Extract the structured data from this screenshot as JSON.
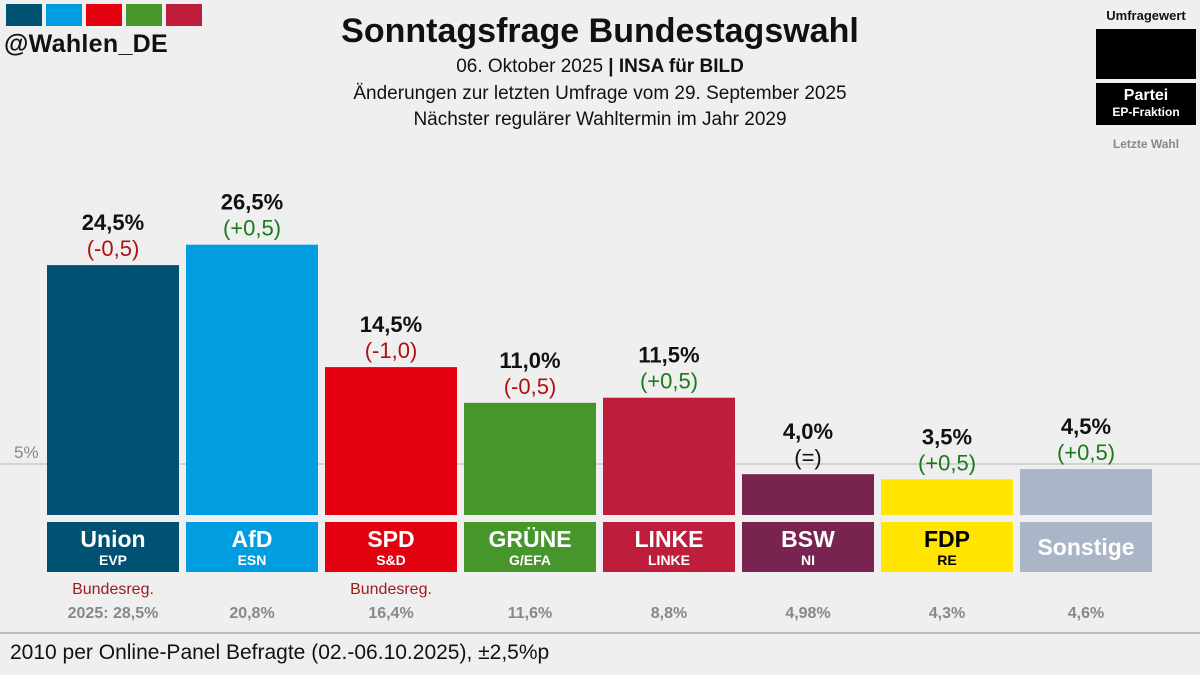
{
  "logo": {
    "handle": "@Wahlen_DE",
    "colors": [
      "#005172",
      "#009ee0",
      "#e3000f",
      "#46962b",
      "#be1e3c"
    ]
  },
  "header": {
    "title": "Sonntagsfrage Bundestagswahl",
    "date": "06. Oktober 2025",
    "separator": "|",
    "institute": "INSA für BILD",
    "line2": "Änderungen zur letzten Umfrage vom 29. September 2025",
    "line3": "Nächster regulärer Wahltermin im Jahr 2029"
  },
  "legend": {
    "value": "Umfragewert",
    "party": "Partei",
    "group": "EP-Fraktion",
    "last": "Letzte Wahl"
  },
  "chart_data": {
    "type": "bar",
    "title": "Sonntagsfrage Bundestagswahl",
    "unit": "%",
    "ylim": [
      0,
      27
    ],
    "threshold": {
      "value": 5,
      "label": "5%"
    },
    "categories": [
      "Union",
      "AfD",
      "SPD",
      "GRÜNE",
      "LINKE",
      "BSW",
      "FDP",
      "Sonstige"
    ],
    "ep_groups": [
      "EVP",
      "ESN",
      "S&D",
      "G/EFA",
      "LINKE",
      "NI",
      "RE",
      ""
    ],
    "values": [
      24.5,
      26.5,
      14.5,
      11.0,
      11.5,
      4.0,
      3.5,
      4.5
    ],
    "value_labels": [
      "24,5%",
      "26,5%",
      "14,5%",
      "11,0%",
      "11,5%",
      "4,0%",
      "3,5%",
      "4,5%"
    ],
    "changes": [
      -0.5,
      0.5,
      -1.0,
      -0.5,
      0.5,
      0,
      0.5,
      0.5
    ],
    "change_labels": [
      "(-0,5)",
      "(+0,5)",
      "(-1,0)",
      "(-0,5)",
      "(+0,5)",
      "(=)",
      "(+0,5)",
      "(+0,5)"
    ],
    "colors": [
      "#005172",
      "#009ee0",
      "#e3000f",
      "#46962b",
      "#be1e3c",
      "#792351",
      "#ffe500",
      "#aab5c8"
    ],
    "label_text_colors": [
      "#ffffff",
      "#ffffff",
      "#ffffff",
      "#ffffff",
      "#ffffff",
      "#ffffff",
      "#000000",
      "#ffffff"
    ],
    "government": [
      "Bundesreg.",
      "",
      "Bundesreg.",
      "",
      "",
      "",
      "",
      ""
    ],
    "last_election": [
      "2025: 28,5%",
      "20,8%",
      "16,4%",
      "11,6%",
      "8,8%",
      "4,98%",
      "4,3%",
      "4,6%"
    ],
    "change_colors": {
      "negative": "#b01010",
      "positive": "#1a7a1a",
      "neutral": "#111111"
    }
  },
  "footer": "2010 per Online-Panel Befragte (02.-06.10.2025), ±2,5%p"
}
